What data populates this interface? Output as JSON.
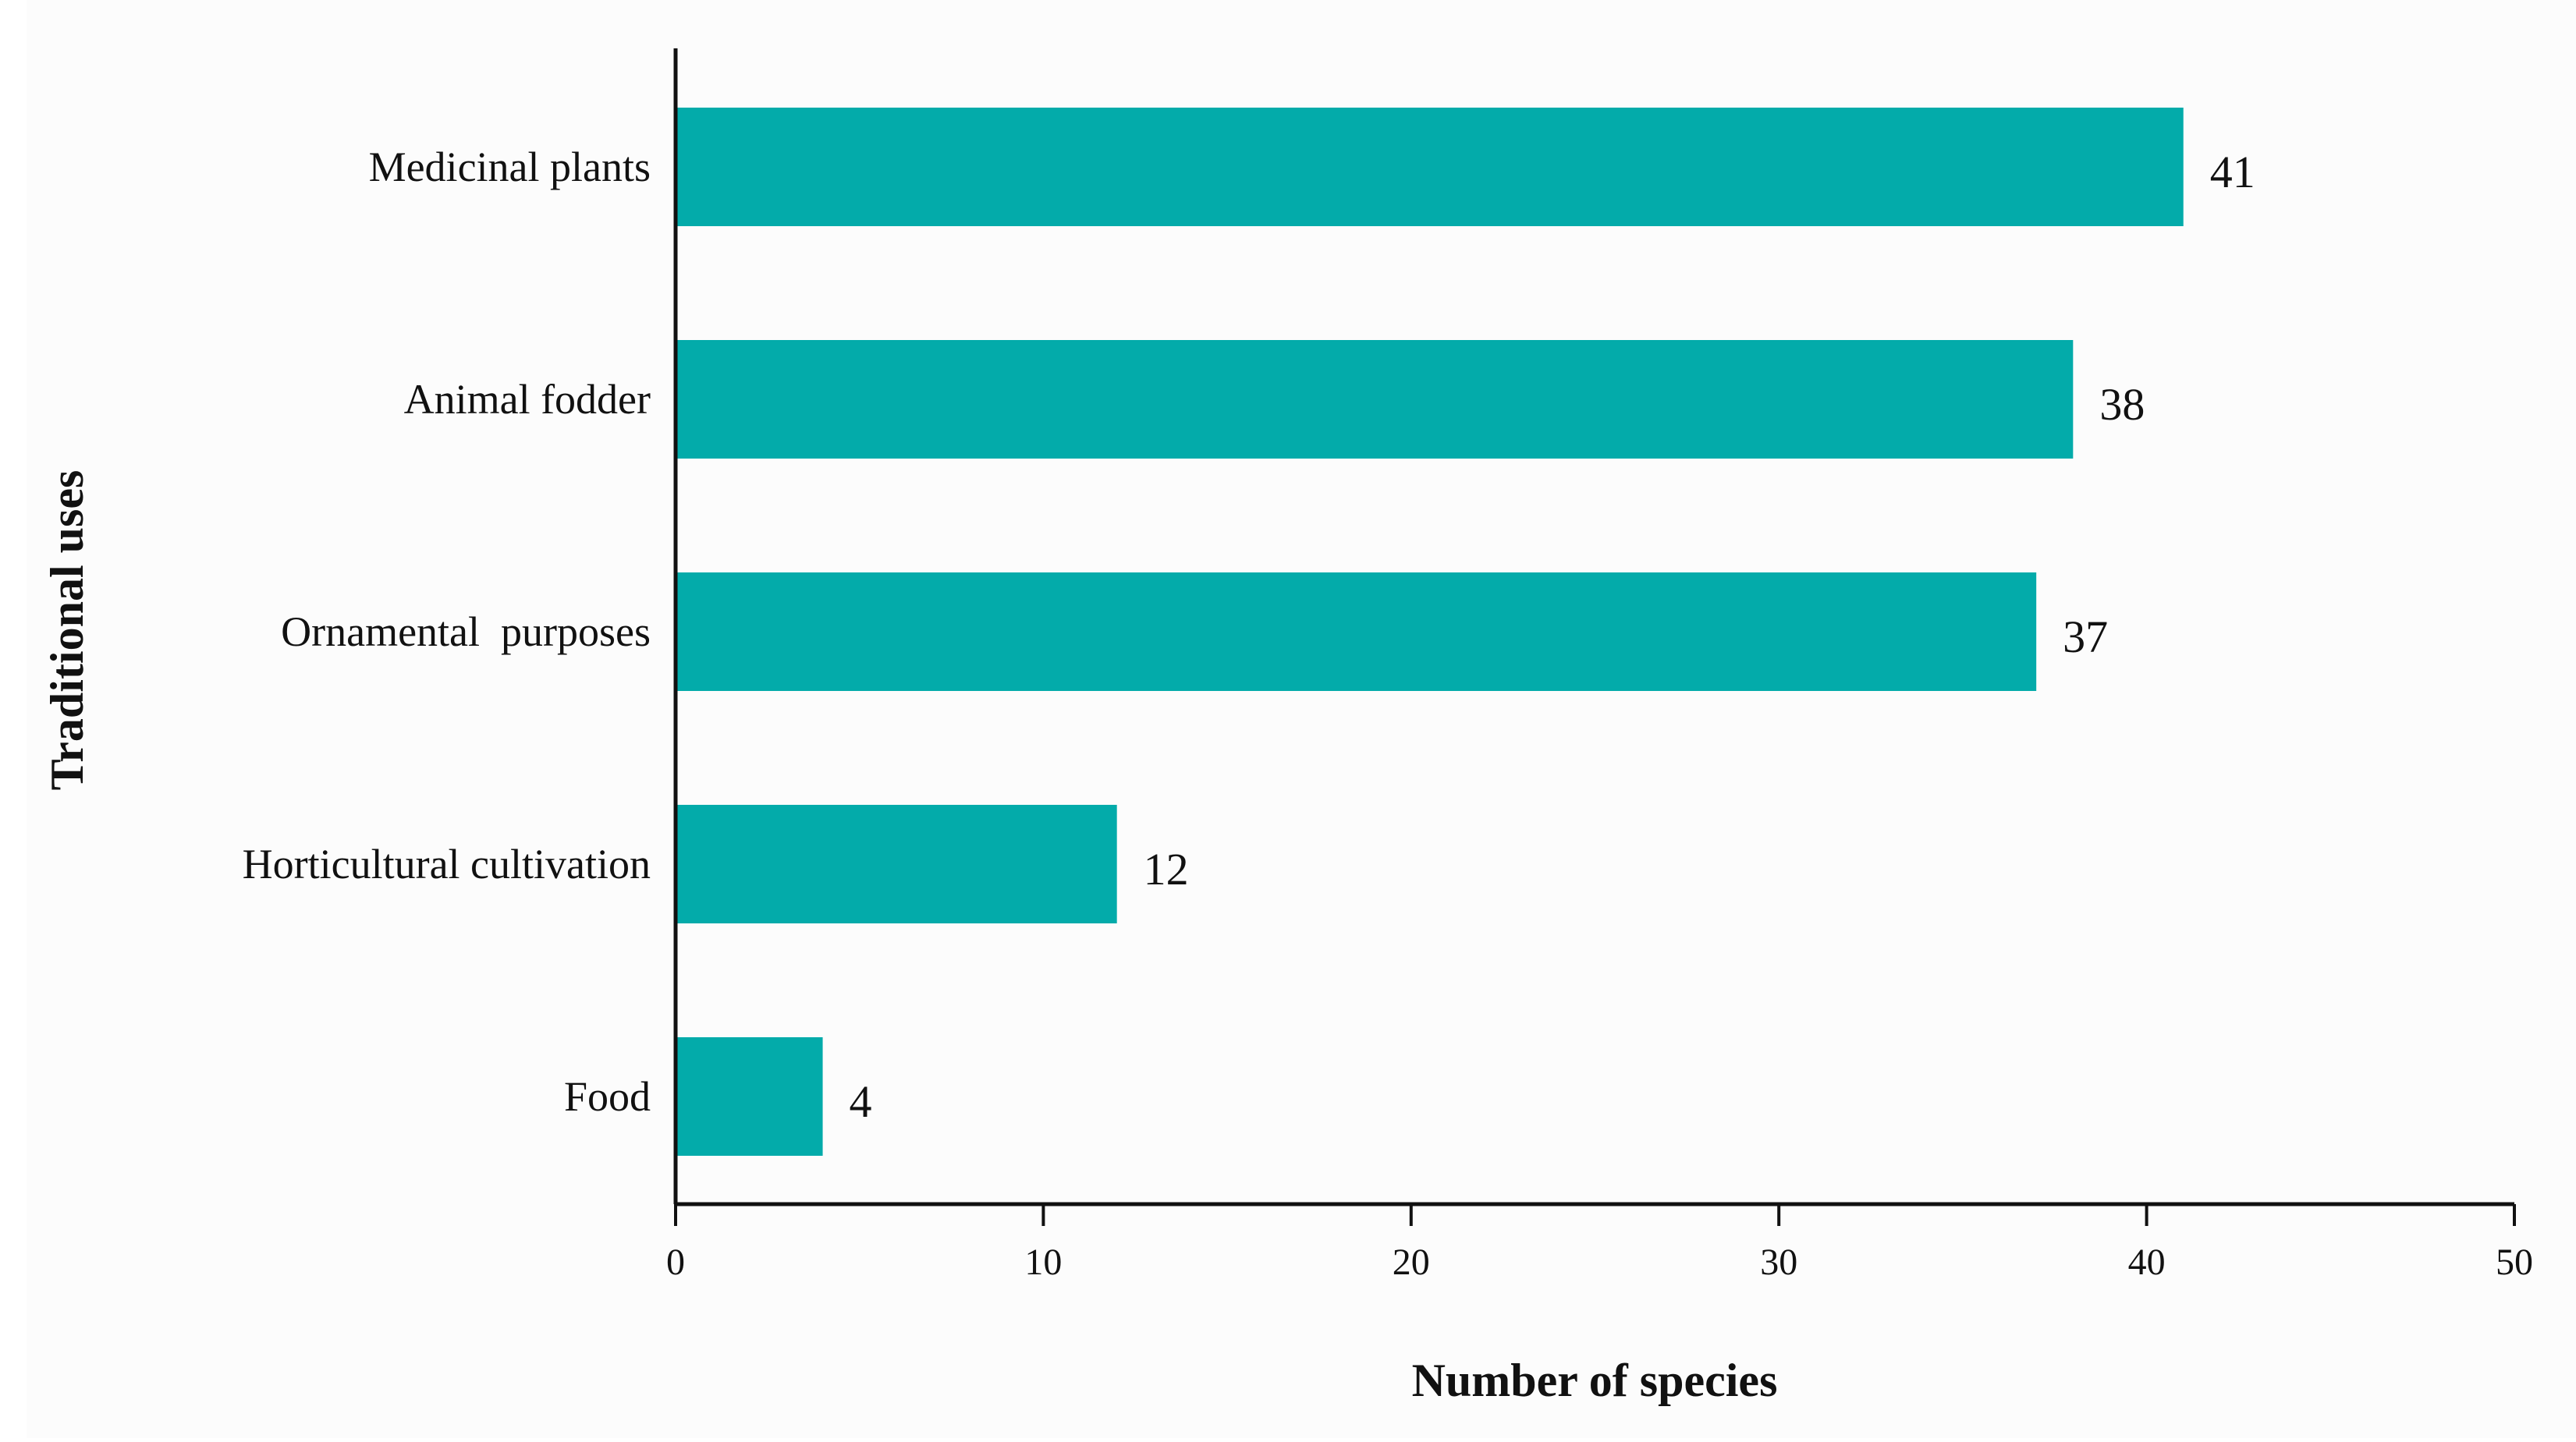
{
  "chart_data": {
    "type": "bar",
    "orientation": "horizontal",
    "categories": [
      "Medicinal plants",
      "Animal fodder",
      "Ornamental  purposes",
      "Horticultural cultivation",
      "Food"
    ],
    "values": [
      41,
      38,
      37,
      12,
      4
    ],
    "value_labels": [
      "41",
      "38",
      "37",
      "12",
      "4"
    ],
    "xlabel": "Number of species",
    "ylabel": "Traditional uses",
    "xlim": [
      0,
      50
    ],
    "xticks": [
      0,
      10,
      20,
      30,
      40,
      50
    ],
    "xtick_labels": [
      "0",
      "10",
      "20",
      "30",
      "40",
      "50"
    ],
    "grid": false,
    "legend": "none",
    "bar_color": "#03ABAA",
    "background_color": "#FCFCFC",
    "axis_color": "#111111"
  }
}
